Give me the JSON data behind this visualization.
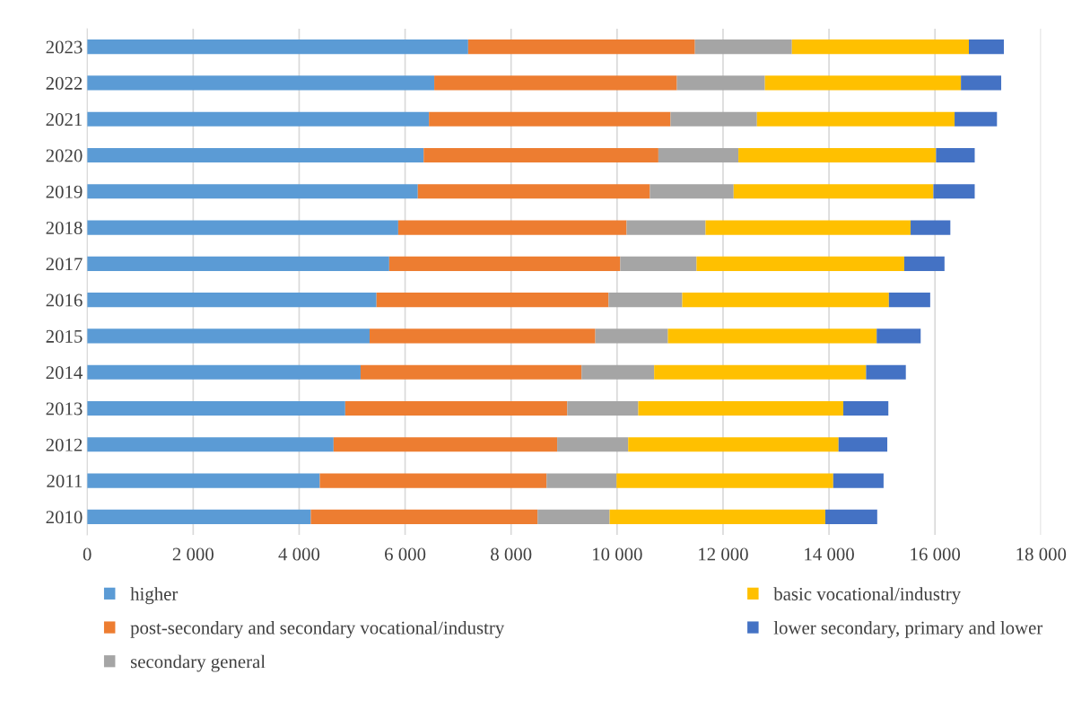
{
  "chart_data": {
    "type": "bar",
    "orientation": "horizontal",
    "stacked": true,
    "categories": [
      "2023",
      "2022",
      "2021",
      "2020",
      "2019",
      "2018",
      "2017",
      "2016",
      "2015",
      "2014",
      "2013",
      "2012",
      "2011",
      "2010"
    ],
    "series": [
      {
        "name": "higher",
        "color": "#5b9bd5",
        "values": [
          7190,
          6550,
          6450,
          6350,
          6240,
          5870,
          5700,
          5460,
          5330,
          5160,
          4870,
          4650,
          4390,
          4220
        ]
      },
      {
        "name": "post-secondary and secondary vocational/industry",
        "color": "#ed7d31",
        "values": [
          4280,
          4580,
          4560,
          4430,
          4380,
          4310,
          4360,
          4380,
          4260,
          4170,
          4190,
          4220,
          4280,
          4280
        ]
      },
      {
        "name": "secondary general",
        "color": "#a5a5a5",
        "values": [
          1830,
          1660,
          1630,
          1510,
          1580,
          1490,
          1440,
          1390,
          1370,
          1370,
          1340,
          1340,
          1320,
          1360
        ]
      },
      {
        "name": "basic vocational/industry",
        "color": "#ffc000",
        "values": [
          3340,
          3700,
          3730,
          3730,
          3770,
          3870,
          3920,
          3900,
          3940,
          4000,
          3870,
          3970,
          4090,
          4070
        ]
      },
      {
        "name": "lower secondary, primary and lower",
        "color": "#4472c4",
        "values": [
          660,
          760,
          800,
          730,
          780,
          750,
          760,
          780,
          830,
          750,
          850,
          920,
          950,
          980
        ]
      }
    ],
    "xlim": [
      0,
      18000
    ],
    "xticks": [
      0,
      {
        "value": 2000,
        "label": "2 000"
      },
      {
        "value": 4000,
        "label": "4 000"
      },
      {
        "value": 6000,
        "label": "6 000"
      },
      {
        "value": 8000,
        "label": "8 000"
      },
      {
        "value": 10000,
        "label": "10 000"
      },
      {
        "value": 12000,
        "label": "12 000"
      },
      {
        "value": 14000,
        "label": "14 000"
      },
      {
        "value": 16000,
        "label": "16 000"
      },
      {
        "value": 18000,
        "label": "18 000"
      }
    ],
    "grid": "x",
    "legend": "bottom"
  }
}
